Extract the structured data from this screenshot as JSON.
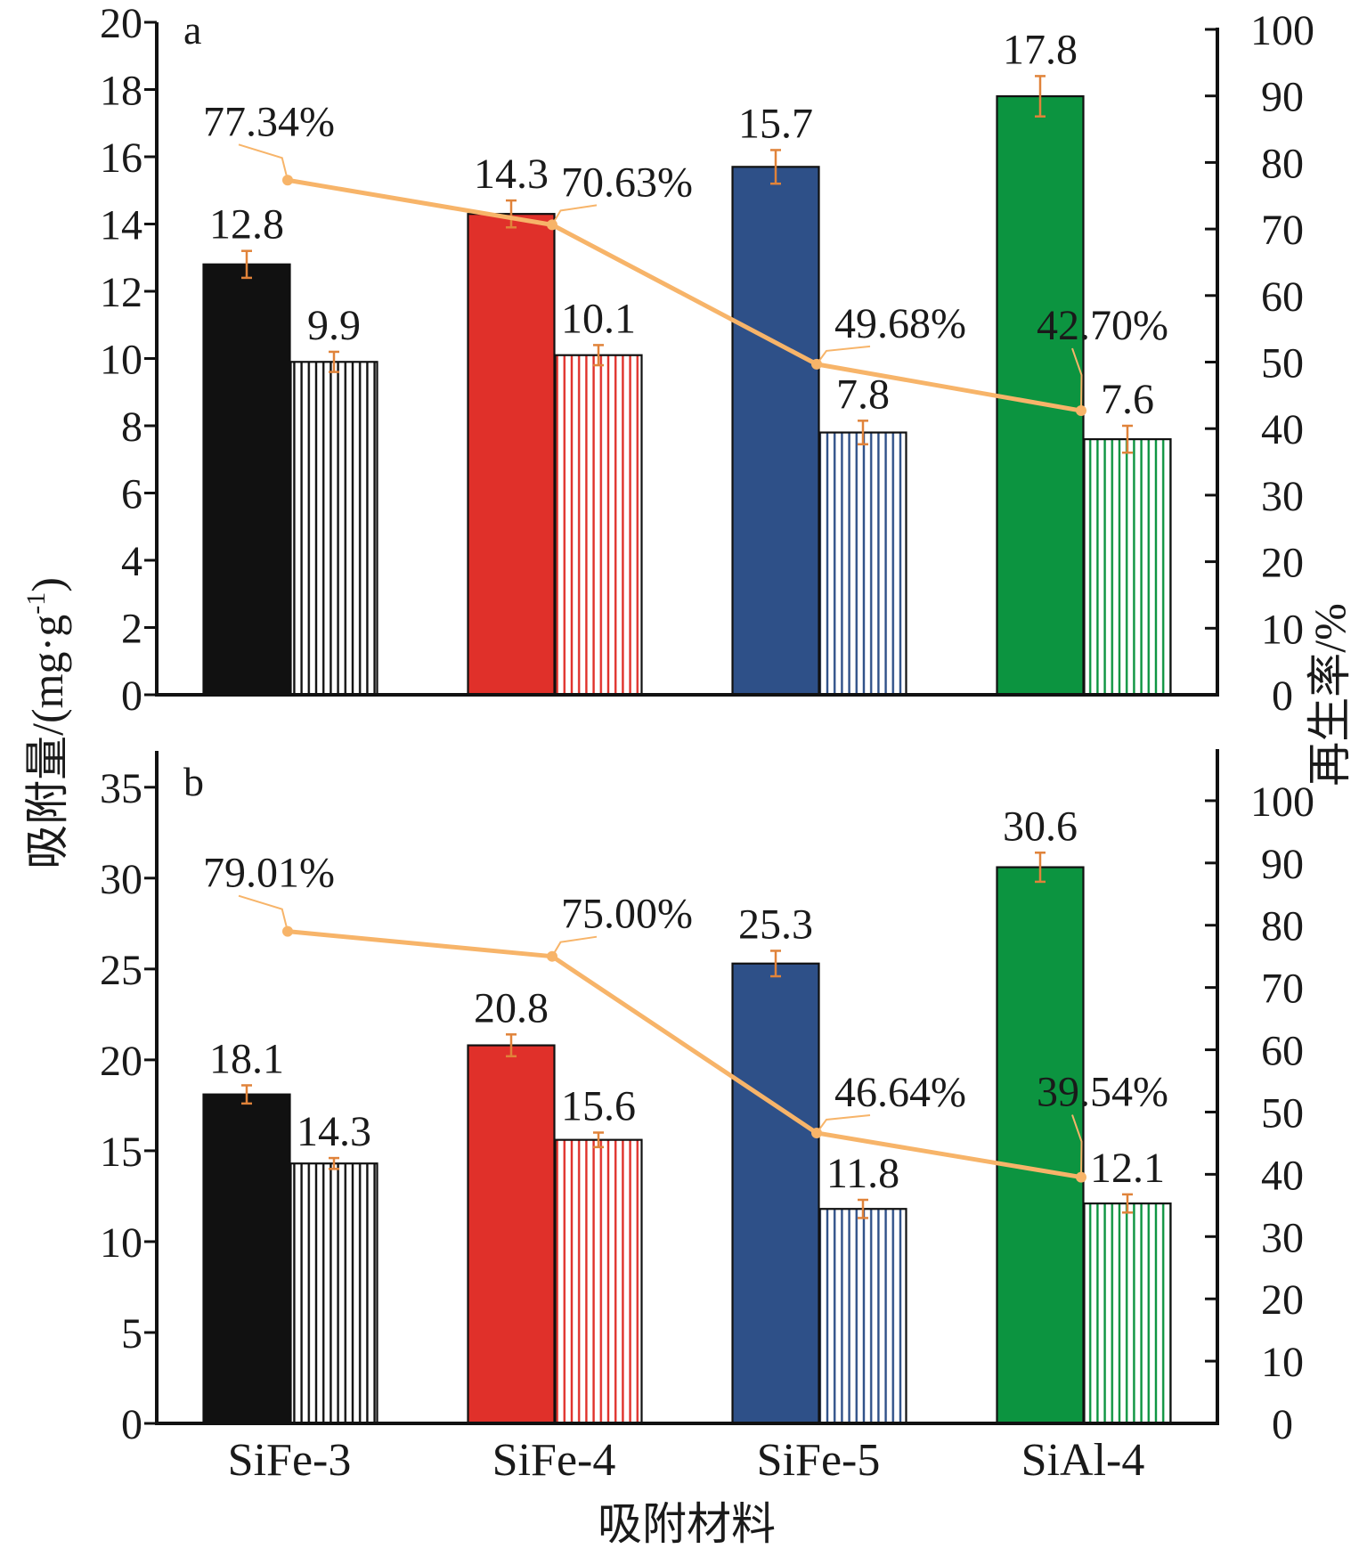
{
  "chart_data": {
    "type": "bar",
    "categories": [
      "SiFe-3",
      "SiFe-4",
      "SiFe-5",
      "SiAl-4"
    ],
    "colors": {
      "category": [
        "#111111",
        "#e0302a",
        "#2e5088",
        "#0c9440"
      ],
      "line": "#f7b469",
      "error_bar": "#e0833a",
      "axis": "#111111"
    },
    "xlabel": "吸附材料",
    "ylabel_left": "吸附量/(mg·g-1)",
    "ylabel_left_parts": [
      "吸附量/(mg·g",
      "-1",
      ")"
    ],
    "ylabel_right": "再生率/%",
    "panels": [
      {
        "label": "a",
        "ylim": [
          0,
          20
        ],
        "yticks": [
          0,
          2,
          4,
          6,
          8,
          10,
          12,
          14,
          16,
          18,
          20
        ],
        "y2lim": [
          0,
          100
        ],
        "y2ticks": [
          0,
          10,
          20,
          30,
          40,
          50,
          60,
          70,
          80,
          90,
          100
        ],
        "series": [
          {
            "fill": "solid",
            "values": [
              12.8,
              14.3,
              15.7,
              17.8
            ],
            "errors": [
              0.4,
              0.4,
              0.5,
              0.6
            ]
          },
          {
            "fill": "striped",
            "values": [
              9.9,
              10.1,
              7.8,
              7.6
            ],
            "errors": [
              0.3,
              0.3,
              0.35,
              0.4
            ]
          }
        ],
        "line": {
          "values": [
            77.34,
            70.63,
            49.68,
            42.7
          ],
          "labels": [
            "77.34%",
            "70.63%",
            "49.68%",
            "42.70%"
          ]
        }
      },
      {
        "label": "b",
        "ylim": [
          0,
          37
        ],
        "yticks": [
          0,
          5,
          10,
          15,
          20,
          25,
          30,
          35
        ],
        "y2lim": [
          0,
          108
        ],
        "y2ticks": [
          0,
          10,
          20,
          30,
          40,
          50,
          60,
          70,
          80,
          90,
          100
        ],
        "series": [
          {
            "fill": "solid",
            "values": [
              18.1,
              20.8,
              25.3,
              30.6
            ],
            "errors": [
              0.5,
              0.6,
              0.7,
              0.8
            ]
          },
          {
            "fill": "striped",
            "values": [
              14.3,
              15.6,
              11.8,
              12.1
            ],
            "errors": [
              0.3,
              0.4,
              0.5,
              0.5
            ]
          }
        ],
        "line": {
          "values": [
            79.01,
            75.0,
            46.64,
            39.54
          ],
          "labels": [
            "79.01%",
            "75.00%",
            "46.64%",
            "39.54%"
          ]
        }
      }
    ]
  }
}
